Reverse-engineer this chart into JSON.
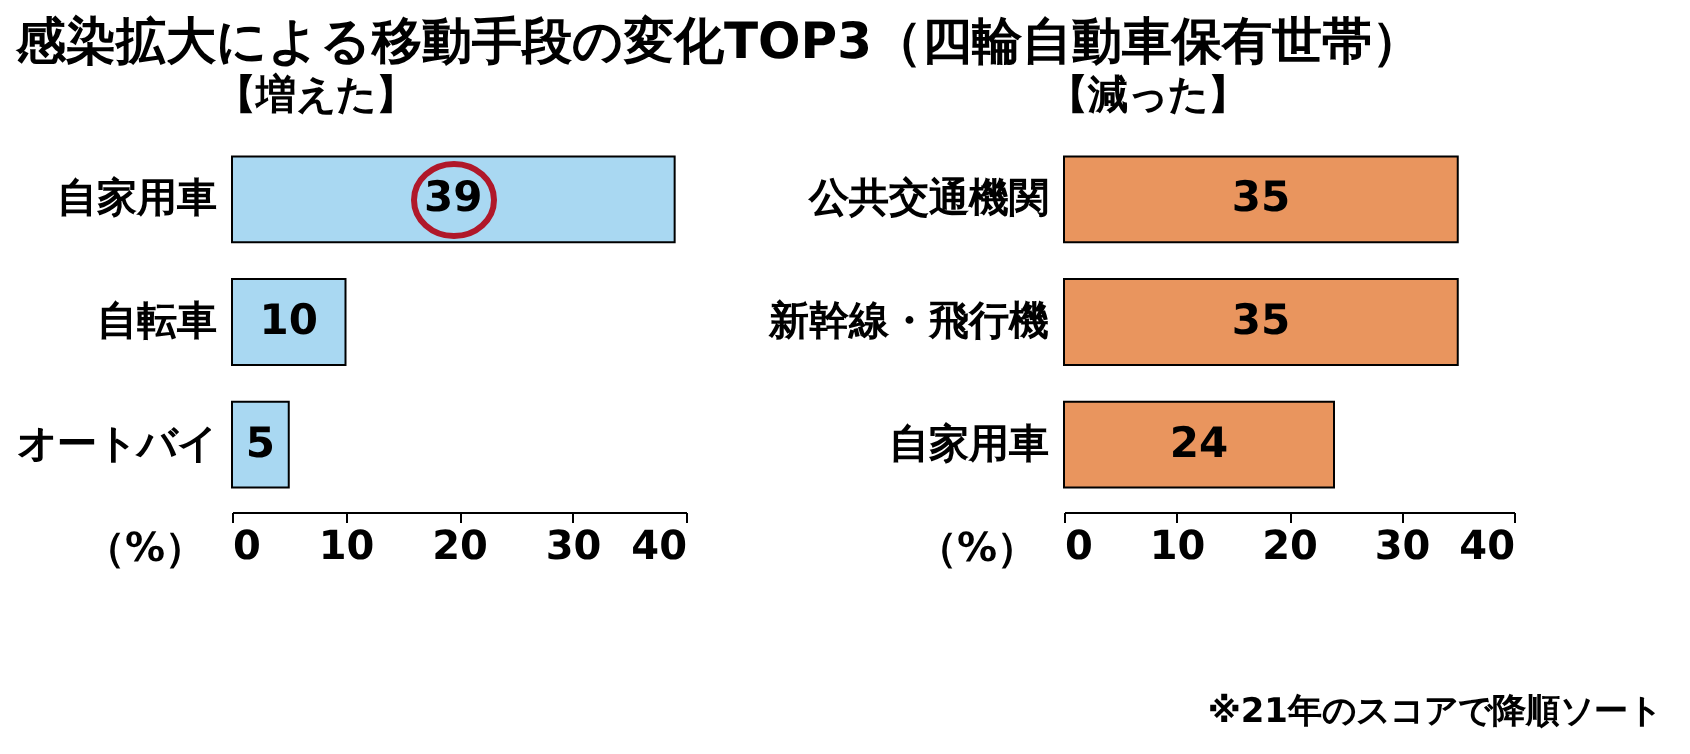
{
  "chart_data": [
    {
      "type": "bar",
      "orientation": "horizontal",
      "title": "感染拡大による移動手段の変化TOP3（四輪自動車保有世帯）",
      "subtitle": "【増えた】",
      "xlabel": "（%）",
      "categories": [
        "自家用車",
        "自転車",
        "オートバイ"
      ],
      "values": [
        39,
        10,
        5
      ],
      "color": "#a9d8f2",
      "xlim": [
        0,
        40
      ],
      "xticks": [
        0,
        10,
        20,
        30,
        40
      ],
      "data_labels": true
    },
    {
      "type": "bar",
      "orientation": "horizontal",
      "title": "【減った】",
      "xlabel": "（%）",
      "categories": [
        "公共交通機関",
        "新幹線・飛行機",
        "自家用車"
      ],
      "values": [
        35,
        35,
        24
      ],
      "color": "#e9955e",
      "xlim": [
        0,
        40
      ],
      "xticks": [
        0,
        10,
        20,
        30,
        40
      ],
      "data_labels": true,
      "annotations": [
        "※21年のスコアで降順ソート"
      ]
    }
  ]
}
